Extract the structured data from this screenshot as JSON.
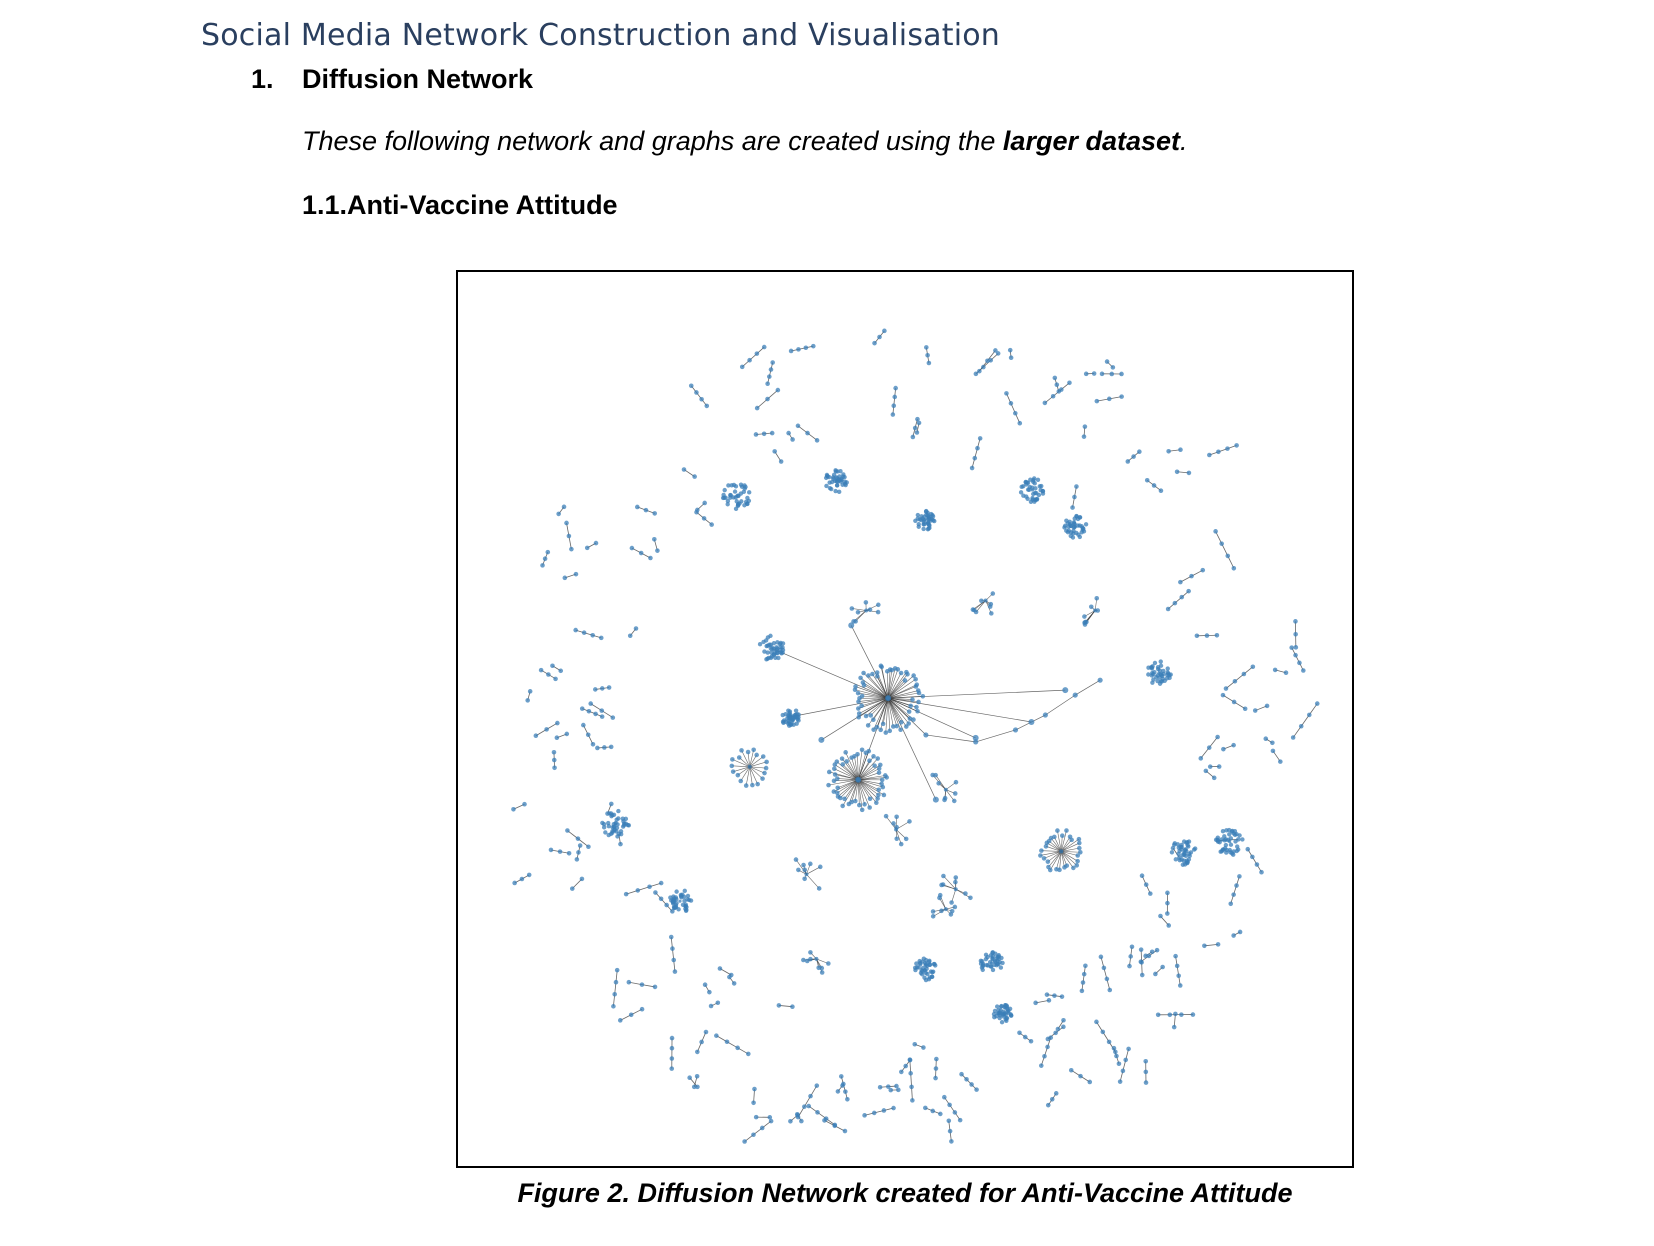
{
  "header": {
    "title": "Social Media Network Construction and Visualisation"
  },
  "section": {
    "number": "1.",
    "title": "Diffusion Network"
  },
  "intro": {
    "prefix": "These following network and graphs are created using the ",
    "emphasis": "larger dataset",
    "suffix": "."
  },
  "subsection": {
    "number": "1.1.",
    "title": "Anti-Vaccine Attitude"
  },
  "figure": {
    "caption": "Figure 2. Diffusion Network created for Anti-Vaccine Attitude",
    "node_color": "#3b7fb8",
    "edge_color": "#333333"
  }
}
